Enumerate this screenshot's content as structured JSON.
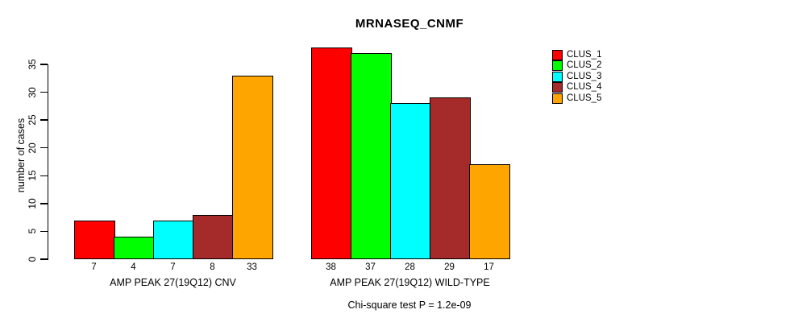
{
  "chart_data": {
    "type": "bar",
    "title": "MRNASEQ_CNMF",
    "ylabel": "number of cases",
    "xlabel": "",
    "ylim": [
      0,
      38
    ],
    "yticks": [
      0,
      5,
      10,
      15,
      20,
      25,
      30,
      35
    ],
    "grid": false,
    "legend_position": "top-right",
    "annotation": "Chi-square test P = 1.2e-09",
    "categories": [
      "AMP PEAK 27(19Q12) CNV",
      "AMP PEAK 27(19Q12) WILD-TYPE"
    ],
    "series": [
      {
        "name": "CLUS_1",
        "color": "#FF0000",
        "values": [
          7,
          38
        ]
      },
      {
        "name": "CLUS_2",
        "color": "#00FF00",
        "values": [
          4,
          37
        ]
      },
      {
        "name": "CLUS_3",
        "color": "#00FFFF",
        "values": [
          7,
          28
        ]
      },
      {
        "name": "CLUS_4",
        "color": "#A52A2A",
        "values": [
          8,
          29
        ]
      },
      {
        "name": "CLUS_5",
        "color": "#FFA500",
        "values": [
          33,
          17
        ]
      }
    ],
    "values_shown_under_bars": {
      "AMP PEAK 27(19Q12) CNV": [
        7,
        4,
        7,
        8,
        33
      ],
      "AMP PEAK 27(19Q12) WILD-TYPE": [
        38,
        37,
        28,
        29,
        17
      ]
    }
  }
}
